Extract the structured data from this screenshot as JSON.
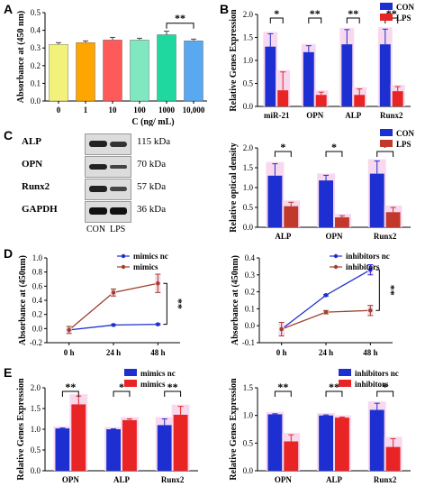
{
  "figure": {
    "panels": [
      {
        "id": "A",
        "label": "A"
      },
      {
        "id": "B",
        "label": "B"
      },
      {
        "id": "C",
        "label": "C"
      },
      {
        "id": "D",
        "label": "D"
      },
      {
        "id": "E",
        "label": "E"
      }
    ]
  },
  "chart_data": [
    {
      "id": "A",
      "type": "bar",
      "categories": [
        "0",
        "1",
        "10",
        "100",
        "1000",
        "10,000"
      ],
      "values": [
        0.32,
        0.33,
        0.345,
        0.345,
        0.375,
        0.34
      ],
      "errors": [
        0.01,
        0.01,
        0.015,
        0.01,
        0.02,
        0.01
      ],
      "colors": [
        "#f2f27a",
        "#ffa500",
        "#ff5a5a",
        "#7fe8c0",
        "#1fd8a0",
        "#5aa8f0"
      ],
      "xlabel": "C (ng/ mL)",
      "ylabel": "Absorbance at (450 nm)",
      "ylim": [
        0,
        0.5
      ],
      "yticks": [
        "0.0",
        "0.1",
        "0.2",
        "0.3",
        "0.4",
        "0.5"
      ],
      "annotations": [
        {
          "text": "**",
          "from": 4,
          "to": 5
        }
      ]
    },
    {
      "id": "B",
      "type": "bar",
      "categories": [
        "miR-21",
        "OPN",
        "ALP",
        "Runx2"
      ],
      "series": [
        {
          "name": "CON",
          "color": "#1e2fd1",
          "values": [
            1.3,
            1.18,
            1.35,
            1.35
          ],
          "errors": [
            0.28,
            0.14,
            0.32,
            0.33
          ]
        },
        {
          "name": "LPS",
          "color": "#e82424",
          "values": [
            0.35,
            0.25,
            0.25,
            0.33
          ],
          "errors": [
            0.4,
            0.06,
            0.13,
            0.1
          ]
        }
      ],
      "ylabel": "Relative Genes Expression",
      "ylim": [
        0,
        2.0
      ],
      "yticks": [
        "0.0",
        "0.5",
        "1.0",
        "1.5",
        "2.0"
      ],
      "legend": "top-right",
      "annotations": [
        "*",
        "**",
        "**",
        "**"
      ]
    },
    {
      "id": "C-blot",
      "type": "table",
      "rows": [
        {
          "protein": "ALP",
          "size": "115 kDa"
        },
        {
          "protein": "OPN",
          "size": "70 kDa"
        },
        {
          "protein": "Runx2",
          "size": "57 kDa"
        },
        {
          "protein": "GAPDH",
          "size": "36 kDa"
        }
      ],
      "lanes": [
        "CON",
        "LPS"
      ]
    },
    {
      "id": "C",
      "type": "bar",
      "categories": [
        "ALP",
        "OPN",
        "Runx2"
      ],
      "series": [
        {
          "name": "CON",
          "color": "#1e2fd1",
          "values": [
            1.3,
            1.18,
            1.35
          ],
          "errors": [
            0.3,
            0.13,
            0.32
          ]
        },
        {
          "name": "LPS",
          "color": "#c0392b",
          "values": [
            0.53,
            0.25,
            0.38
          ],
          "errors": [
            0.1,
            0.04,
            0.12
          ]
        }
      ],
      "ylabel": "Relative optical density",
      "ylim": [
        0,
        2.0
      ],
      "yticks": [
        "0.0",
        "0.5",
        "1.0",
        "1.5",
        "2.0"
      ],
      "legend": "top-right",
      "annotations": [
        "*",
        "*",
        "*"
      ]
    },
    {
      "id": "D1",
      "type": "line",
      "x": [
        "0 h",
        "24 h",
        "48 h"
      ],
      "series": [
        {
          "name": "mimics nc",
          "color": "#1e2fd1",
          "values": [
            -0.02,
            0.05,
            0.06
          ],
          "errors": [
            0.01,
            0.01,
            0.01
          ]
        },
        {
          "name": "mimics",
          "color": "#a0402e",
          "values": [
            -0.02,
            0.51,
            0.64
          ],
          "errors": [
            0.05,
            0.05,
            0.13
          ]
        }
      ],
      "ylabel": "Absorbance at (450nm)",
      "ylim": [
        -0.2,
        1.0
      ],
      "yticks": [
        "-0.2",
        "0.0",
        "0.2",
        "0.4",
        "0.6",
        "0.8",
        "1.0"
      ],
      "legend": "top-right",
      "annotations": [
        "**"
      ]
    },
    {
      "id": "D2",
      "type": "line",
      "x": [
        "0 h",
        "24 h",
        "48 h"
      ],
      "series": [
        {
          "name": "inhibitors nc",
          "color": "#1e2fd1",
          "values": [
            -0.02,
            0.18,
            0.33
          ],
          "errors": [
            0.03,
            0.005,
            0.03
          ]
        },
        {
          "name": "inhibitors",
          "color": "#a0402e",
          "values": [
            -0.02,
            0.08,
            0.09
          ],
          "errors": [
            0.04,
            0.01,
            0.03
          ]
        }
      ],
      "ylabel": "Absorbance at (450nm)",
      "ylim": [
        -0.1,
        0.4
      ],
      "yticks": [
        "-0.1",
        "0.0",
        "0.1",
        "0.2",
        "0.3",
        "0.4"
      ],
      "legend": "top-right",
      "annotations": [
        "**"
      ]
    },
    {
      "id": "E1",
      "type": "bar",
      "categories": [
        "OPN",
        "ALP",
        "Runx2"
      ],
      "series": [
        {
          "name": "mimics nc",
          "color": "#1e2fd1",
          "values": [
            1.02,
            1.0,
            1.1
          ],
          "errors": [
            0.01,
            0.01,
            0.15
          ]
        },
        {
          "name": "mimics",
          "color": "#e82424",
          "values": [
            1.6,
            1.22,
            1.35
          ],
          "errors": [
            0.2,
            0.03,
            0.2
          ]
        }
      ],
      "ylabel": "Relative Genes Expression",
      "ylim": [
        0,
        2.0
      ],
      "yticks": [
        "0.0",
        "0.5",
        "1.0",
        "1.5",
        "2.0"
      ],
      "legend": "top-right",
      "annotations": [
        "**",
        "*",
        "**"
      ]
    },
    {
      "id": "E2",
      "type": "bar",
      "categories": [
        "OPN",
        "ALP",
        "Runx2"
      ],
      "series": [
        {
          "name": "inhibitors nc",
          "color": "#1e2fd1",
          "values": [
            1.02,
            1.0,
            1.1
          ],
          "errors": [
            0.01,
            0.01,
            0.12
          ]
        },
        {
          "name": "inhibitors",
          "color": "#e82424",
          "values": [
            0.53,
            0.96,
            0.43
          ],
          "errors": [
            0.12,
            0.01,
            0.15
          ]
        }
      ],
      "ylabel": "Relative Genes Expression",
      "ylim": [
        0,
        1.5
      ],
      "yticks": [
        "0.0",
        "0.5",
        "1.0",
        "1.5"
      ],
      "legend": "top-right",
      "annotations": [
        "**",
        "**",
        "*"
      ]
    }
  ]
}
